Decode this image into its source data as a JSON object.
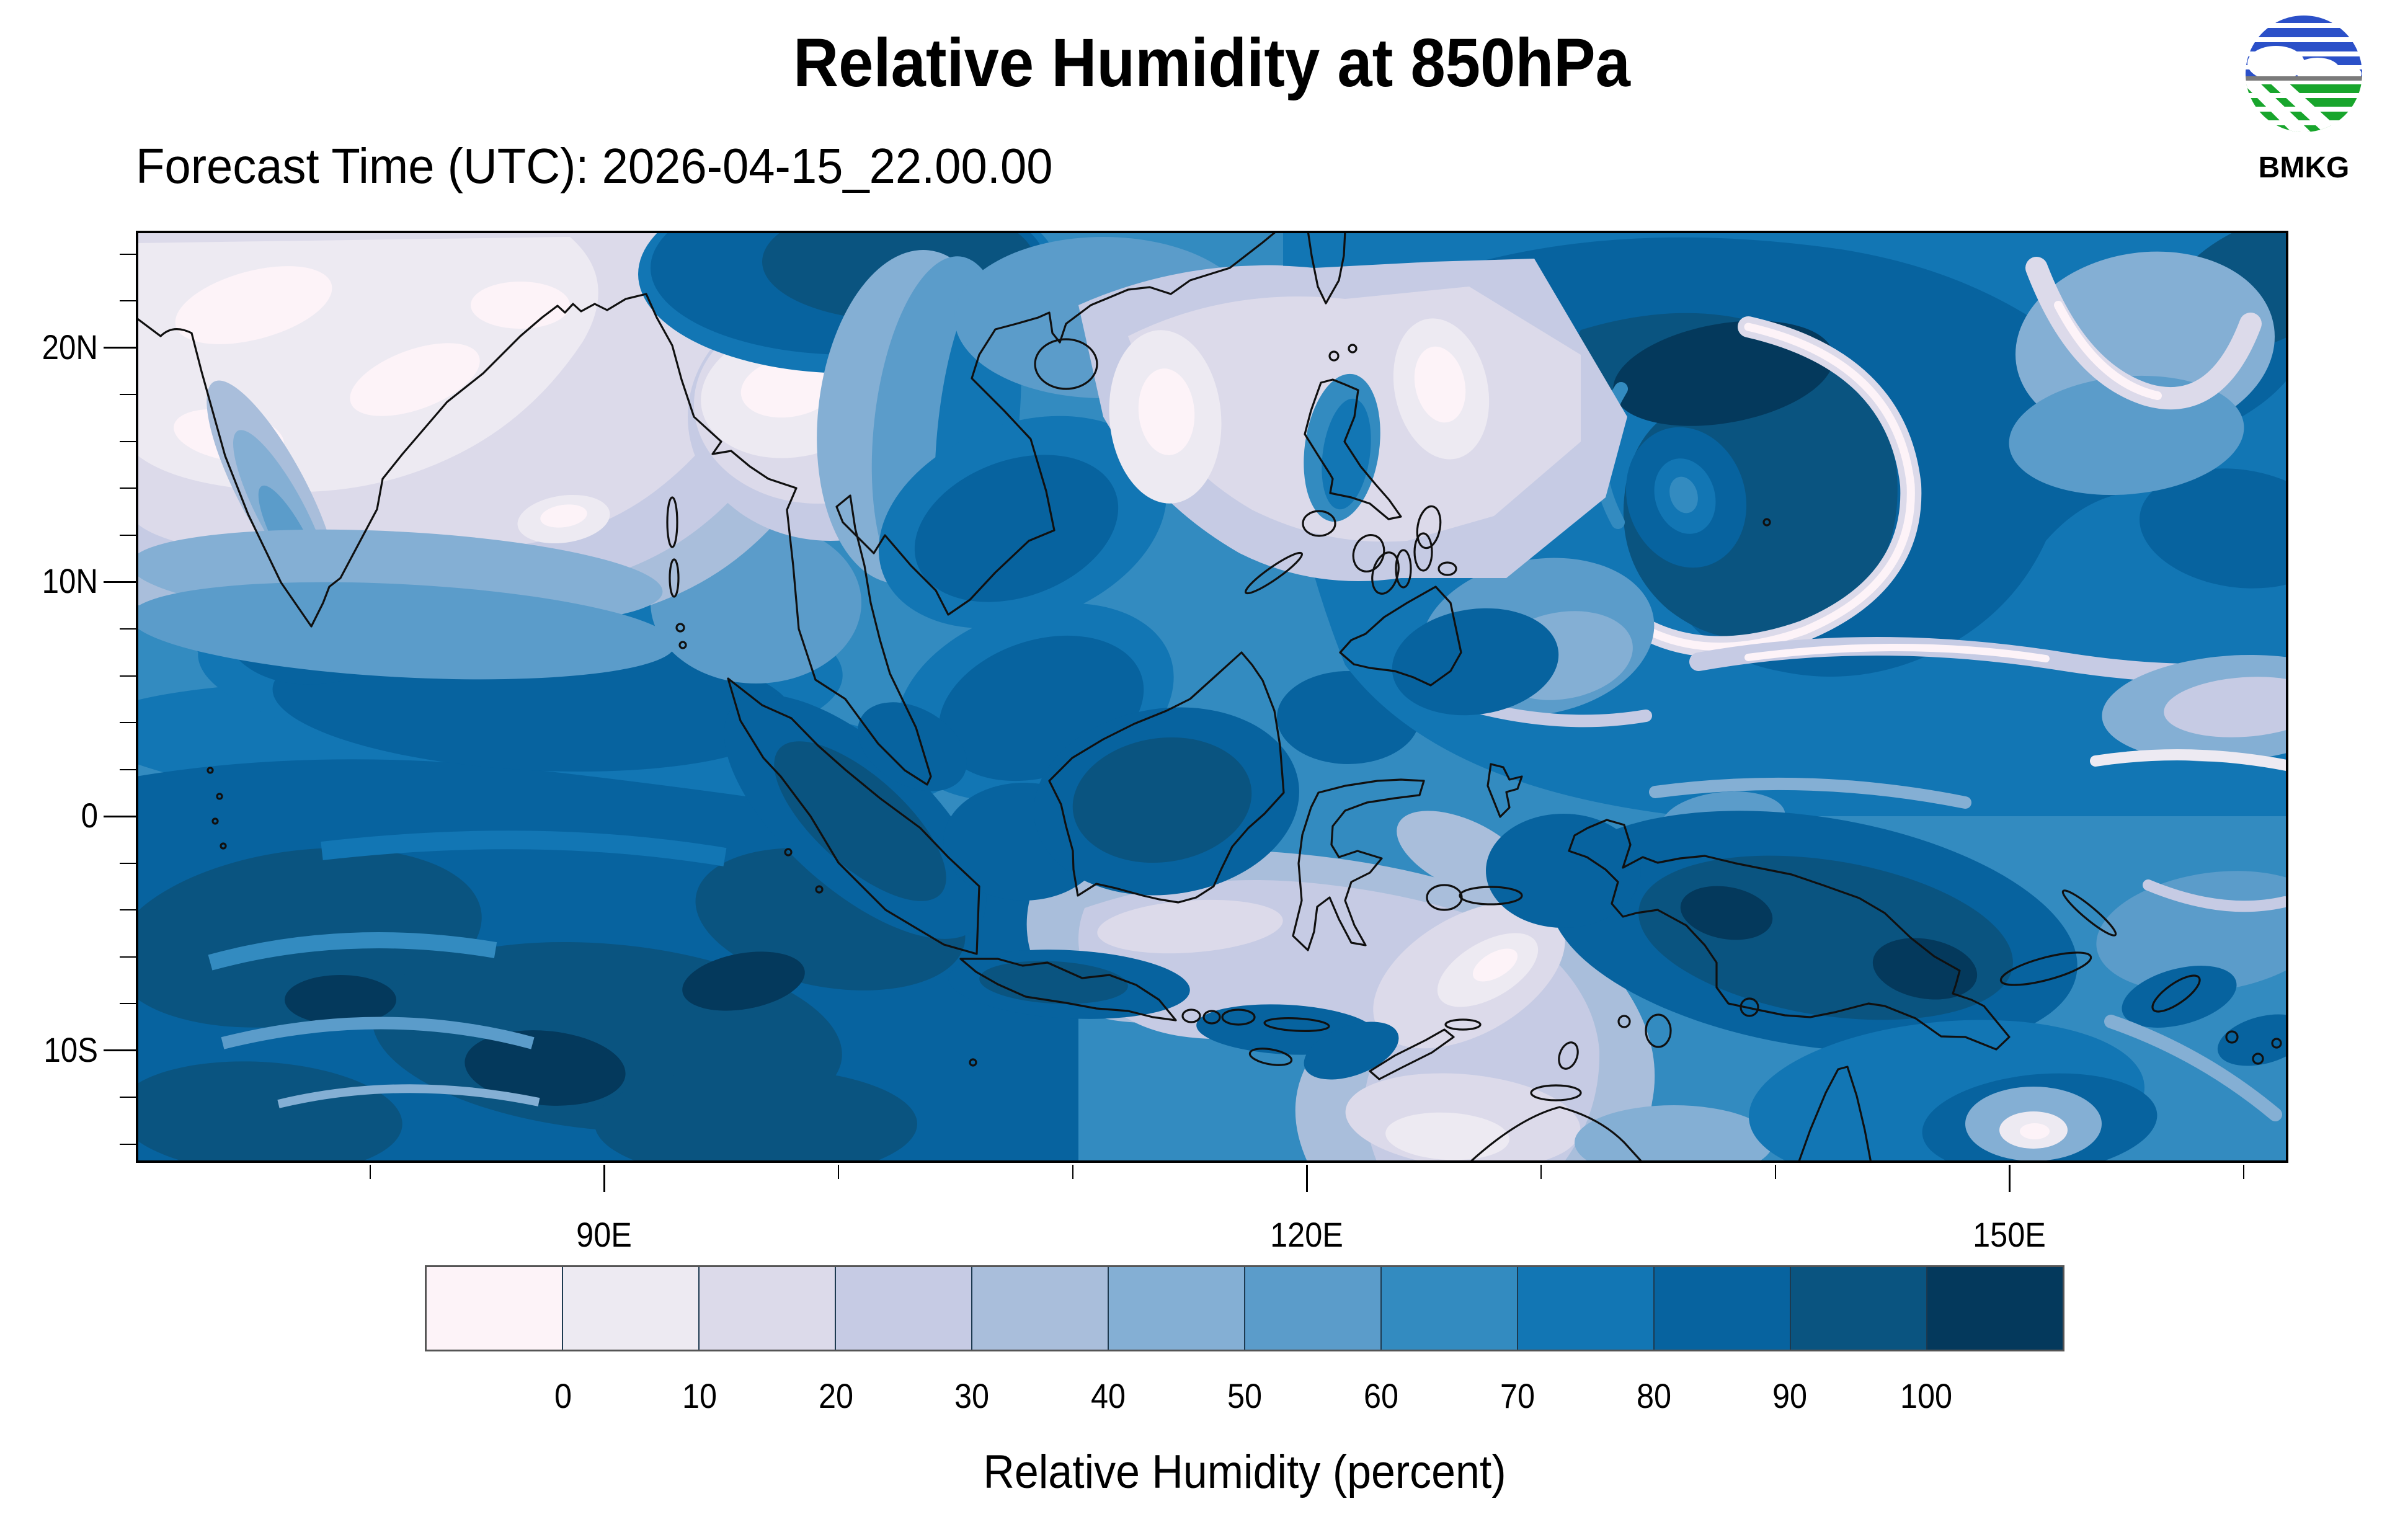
{
  "header": {
    "title": "Relative Humidity at 850hPa",
    "subtitle": "Forecast Time (UTC): 2026-04-15_22.00.00",
    "logo_text": "BMKG"
  },
  "axes": {
    "lat_major": [
      {
        "label": "20N",
        "deg": 20
      },
      {
        "label": "10N",
        "deg": 10
      },
      {
        "label": "0",
        "deg": 0
      },
      {
        "label": "10S",
        "deg": -10
      }
    ],
    "lat_minor_degs": [
      24,
      22,
      18,
      16,
      14,
      12,
      8,
      6,
      4,
      2,
      -2,
      -4,
      -6,
      -8,
      -12,
      -14
    ],
    "lon_major": [
      {
        "label": "90E",
        "deg": 90
      },
      {
        "label": "120E",
        "deg": 120
      },
      {
        "label": "150E",
        "deg": 150
      }
    ],
    "lon_minor_degs": [
      80,
      100,
      110,
      130,
      140,
      160
    ]
  },
  "colorbar": {
    "caption": "Relative Humidity (percent)",
    "tick_labels": [
      "0",
      "10",
      "20",
      "30",
      "40",
      "50",
      "60",
      "70",
      "80",
      "90",
      "100"
    ],
    "colors": [
      "#fdf3f8",
      "#edeaf2",
      "#dcdaea",
      "#c6cbe4",
      "#a9bedb",
      "#84afd4",
      "#5b9cca",
      "#338bc0",
      "#1276b4",
      "#07639f",
      "#0a5480",
      "#04395c"
    ]
  },
  "chart_data": {
    "type": "heatmap",
    "subtype": "filled_contour_map",
    "title": "Relative Humidity at 850hPa",
    "variable": "Relative Humidity",
    "units": "percent",
    "pressure_level": "850hPa",
    "forecast_time_utc": "2026-04-15_22.00.00",
    "agency": "BMKG",
    "lon_range_deg_east": [
      70,
      162
    ],
    "lat_range_deg_north": [
      -14.8,
      25
    ],
    "lat_tick_labels": [
      "20N",
      "10N",
      "0",
      "10S"
    ],
    "lon_tick_labels": [
      "90E",
      "120E",
      "150E"
    ],
    "contour_levels_percent": [
      0,
      10,
      20,
      30,
      40,
      50,
      60,
      70,
      80,
      90,
      100
    ],
    "palette": [
      "#fdf3f8",
      "#edeaf2",
      "#dcdaea",
      "#c6cbe4",
      "#a9bedb",
      "#84afd4",
      "#5b9cca",
      "#338bc0",
      "#1276b4",
      "#07639f",
      "#0a5480",
      "#04395c"
    ],
    "notable_features": [
      "dry (lavender/white, <40%) air mass over India, Bay of Bengal north and Indochina",
      "dry tongue over South China Sea, Luzon Strait and east of Taiwan",
      "very moist (>90%) spiral storm system over western Pacific near 13N 137E",
      "broad very moist band over southeast Indian Ocean south of the equator",
      "moist air over Sumatra, Borneo and New Guinea with dry slot over Java, Banda and Arafura seas"
    ]
  }
}
